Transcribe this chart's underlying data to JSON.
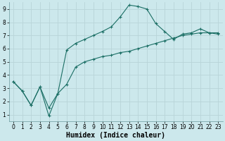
{
  "xlabel": "Humidex (Indice chaleur)",
  "bg_color": "#cce8ec",
  "grid_color": "#b8d4d8",
  "line_color": "#1a6e64",
  "line1_x": [
    0,
    1,
    2,
    3,
    4,
    5,
    6,
    7,
    8,
    9,
    10,
    11,
    12,
    13,
    14,
    15,
    16,
    17,
    18,
    19,
    20,
    21,
    22,
    23
  ],
  "line1_y": [
    3.5,
    2.8,
    1.7,
    3.1,
    0.9,
    2.6,
    5.9,
    6.4,
    6.7,
    7.0,
    7.3,
    7.65,
    8.4,
    9.3,
    9.2,
    9.0,
    7.9,
    7.3,
    6.7,
    7.1,
    7.2,
    7.5,
    7.2,
    7.1
  ],
  "line2_x": [
    0,
    1,
    2,
    3,
    4,
    5,
    6,
    7,
    8,
    9,
    10,
    11,
    12,
    13,
    14,
    15,
    16,
    17,
    18,
    19,
    20,
    21,
    22,
    23
  ],
  "line2_y": [
    3.5,
    2.8,
    1.7,
    3.1,
    1.5,
    2.6,
    3.3,
    4.6,
    5.0,
    5.2,
    5.4,
    5.5,
    5.7,
    5.8,
    6.0,
    6.2,
    6.4,
    6.6,
    6.8,
    7.0,
    7.1,
    7.2,
    7.2,
    7.2
  ],
  "xlim": [
    -0.5,
    23.5
  ],
  "ylim": [
    0.5,
    9.5
  ],
  "yticks": [
    1,
    2,
    3,
    4,
    5,
    6,
    7,
    8,
    9
  ],
  "xticks": [
    0,
    1,
    2,
    3,
    4,
    5,
    6,
    7,
    8,
    9,
    10,
    11,
    12,
    13,
    14,
    15,
    16,
    17,
    18,
    19,
    20,
    21,
    22,
    23
  ],
  "tick_fontsize": 5.5,
  "xlabel_fontsize": 7.0
}
